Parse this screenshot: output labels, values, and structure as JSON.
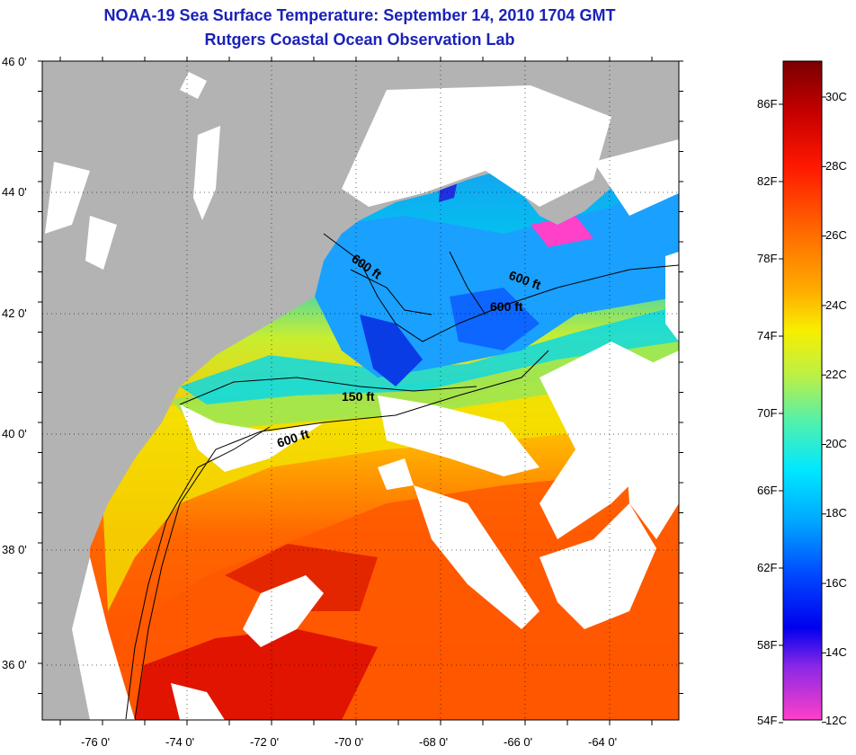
{
  "title": "NOAA-19 Sea Surface Temperature:  September 14, 2010 1704 GMT",
  "subtitle": "Rutgers Coastal Ocean Observation Lab",
  "lat_ticks": [
    "46 0'",
    "44 0'",
    "42 0'",
    "40 0'",
    "38 0'",
    "36 0'"
  ],
  "lon_ticks": [
    "-76 0'",
    "-74 0'",
    "-72 0'",
    "-70 0'",
    "-68 0'",
    "-66 0'",
    "-64 0'"
  ],
  "contour_labels": [
    "600 ft",
    "600 ft",
    "600 ft",
    "150 ft",
    "600 ft"
  ],
  "colorbar": {
    "fahrenheit": [
      "86F",
      "82F",
      "78F",
      "74F",
      "70F",
      "66F",
      "62F",
      "58F",
      "54F"
    ],
    "celsius": [
      "30C",
      "28C",
      "26C",
      "24C",
      "22C",
      "20C",
      "18C",
      "16C",
      "14C",
      "12C"
    ]
  },
  "colors": {
    "title": "#1a22b8",
    "land": "#b3b3b3",
    "cloud": "#ffffff"
  }
}
